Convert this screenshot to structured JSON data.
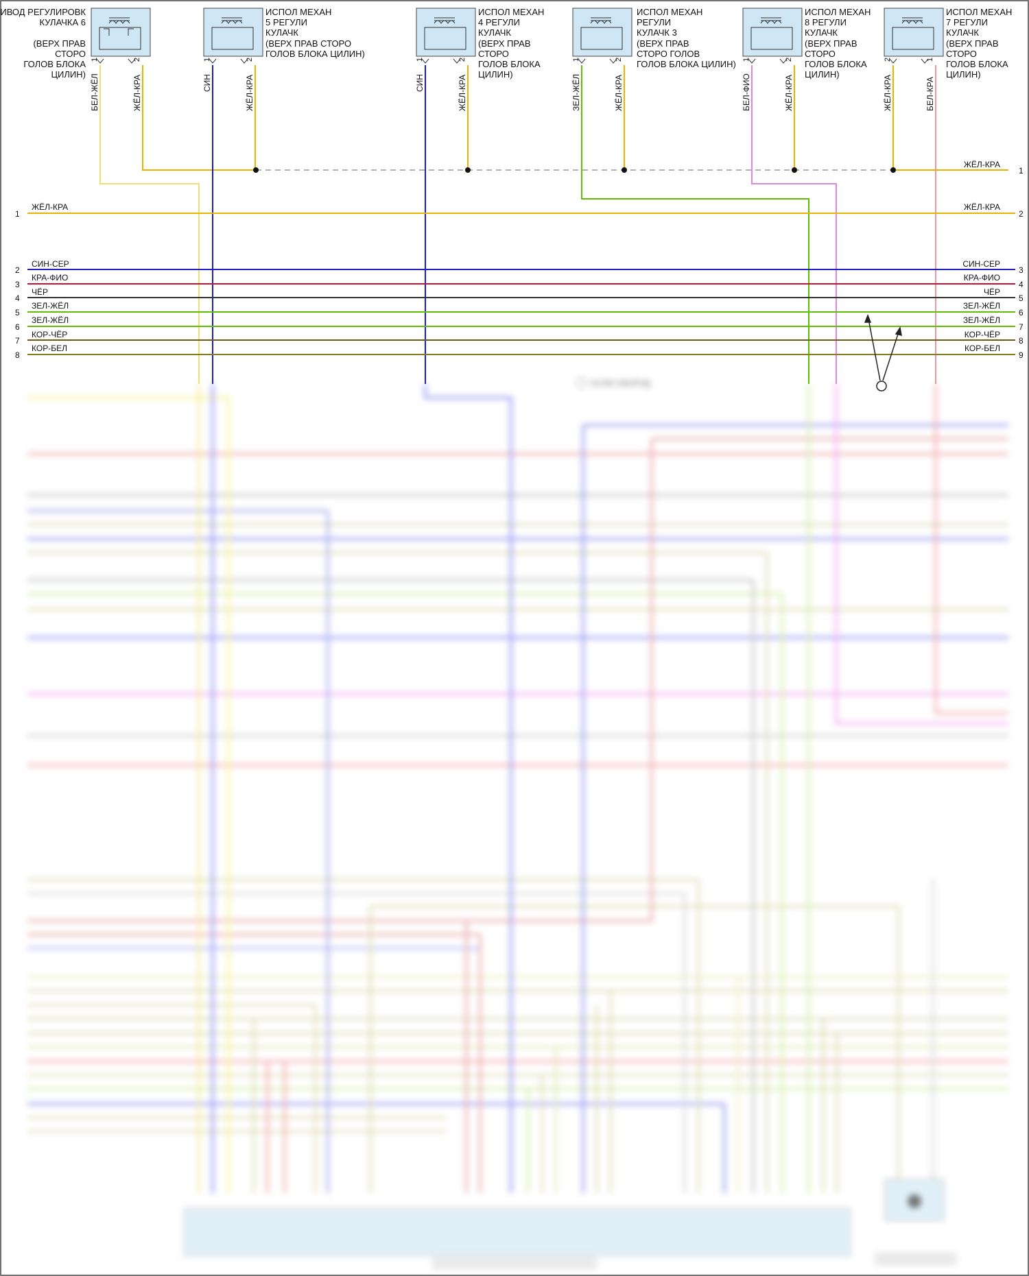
{
  "solenoids": [
    {
      "id": "s6",
      "label": [
        "ИВОД РЕГУЛИРОВК",
        "КУЛАЧКА 6",
        "",
        "(ВЕРХ ПРАВ",
        "СТОРО",
        "ГОЛОВ БЛОКА",
        "ЦИЛИН)"
      ],
      "pins": [
        "1",
        "2"
      ],
      "leads": [
        "БЕЛ-ЖЁЛ",
        "ЖЁЛ-КРА"
      ]
    },
    {
      "id": "s5",
      "label": [
        "ИСПОЛ МЕХАН",
        "5 РЕГУЛИ",
        "КУЛАЧК",
        "(ВЕРХ ПРАВ СТОРО",
        "ГОЛОВ БЛОКА ЦИЛИН)"
      ],
      "pins": [
        "1",
        "2"
      ],
      "leads": [
        "СИН",
        "ЖЁЛ-КРА"
      ]
    },
    {
      "id": "s4",
      "label": [
        "ИСПОЛ МЕХАН",
        "4 РЕГУЛИ",
        "КУЛАЧК",
        "(ВЕРХ ПРАВ",
        "СТОРО",
        "ГОЛОВ БЛОКА",
        "ЦИЛИН)"
      ],
      "pins": [
        "1",
        "2"
      ],
      "leads": [
        "СИН",
        "ЖЁЛ-КРА"
      ]
    },
    {
      "id": "s3",
      "label": [
        "ИСПОЛ МЕХАН",
        "РЕГУЛИ",
        "КУЛАЧК 3",
        "(ВЕРХ ПРАВ",
        "СТОРО ГОЛОВ",
        "ГОЛОВ БЛОКА ЦИЛИН)"
      ],
      "pins": [
        "1",
        "2"
      ],
      "leads": [
        "ЗЕЛ-ЖЁЛ",
        "ЖЁЛ-КРА"
      ]
    },
    {
      "id": "s8",
      "label": [
        "ИСПОЛ МЕХАН",
        "8 РЕГУЛИ",
        "КУЛАЧК",
        "(ВЕРХ ПРАВ",
        "СТОРО",
        "ГОЛОВ БЛОКА",
        "ЦИЛИН)"
      ],
      "pins": [
        "1",
        "2"
      ],
      "leads": [
        "БЕЛ-ФИО",
        "ЖЁЛ-КРА"
      ]
    },
    {
      "id": "s7",
      "label": [
        "ИСПОЛ МЕХАН",
        "7 РЕГУЛИ",
        "КУЛАЧК",
        "(ВЕРХ ПРАВ",
        "СТОРО",
        "ГОЛОВ БЛОКА",
        "ЦИЛИН)"
      ],
      "pins": [
        "2",
        "1"
      ],
      "leads": [
        "ЖЁЛ-КРА",
        "БЕЛ-КРА"
      ]
    }
  ],
  "buses": [
    {
      "left_no": "",
      "right_no": "1",
      "left_label": "",
      "right_label": "ЖЁЛ-КРА"
    },
    {
      "left_no": "1",
      "right_no": "2",
      "left_label": "ЖЁЛ-КРА",
      "right_label": "ЖЁЛ-КРА"
    },
    {
      "left_no": "2",
      "right_no": "3",
      "left_label": "СИН-СЕР",
      "right_label": "СИН-СЕР"
    },
    {
      "left_no": "3",
      "right_no": "4",
      "left_label": "КРА-ФИО",
      "right_label": "КРА-ФИО"
    },
    {
      "left_no": "4",
      "right_no": "5",
      "left_label": "ЧЁР",
      "right_label": "ЧЁР"
    },
    {
      "left_no": "5",
      "right_no": "6",
      "left_label": "ЗЕЛ-ЖЁЛ",
      "right_label": "ЗЕЛ-ЖЁЛ"
    },
    {
      "left_no": "6",
      "right_no": "7",
      "left_label": "ЗЕЛ-ЖЁЛ",
      "right_label": "ЗЕЛ-ЖЁЛ"
    },
    {
      "left_no": "7",
      "right_no": "8",
      "left_label": "КОР-ЧЁР",
      "right_label": "КОР-ЧЁР"
    },
    {
      "left_no": "8",
      "right_no": "9",
      "left_label": "КОР-БЕЛ",
      "right_label": "КОР-БЕЛ"
    }
  ],
  "note_equipped": "ЕСЛИ ОБОРУД",
  "colors": {
    "yellow_red": "#e8b400",
    "blue": "#1a1ad0",
    "red": "#d01030",
    "black": "#333333",
    "green": "#5cc000",
    "brown": "#6e5a10",
    "pink": "#dd66dd",
    "lightyellow": "#f0e070",
    "blue_gray": "#5050e0",
    "gray": "#9a9a9a",
    "connector": "#cfe6f5"
  }
}
